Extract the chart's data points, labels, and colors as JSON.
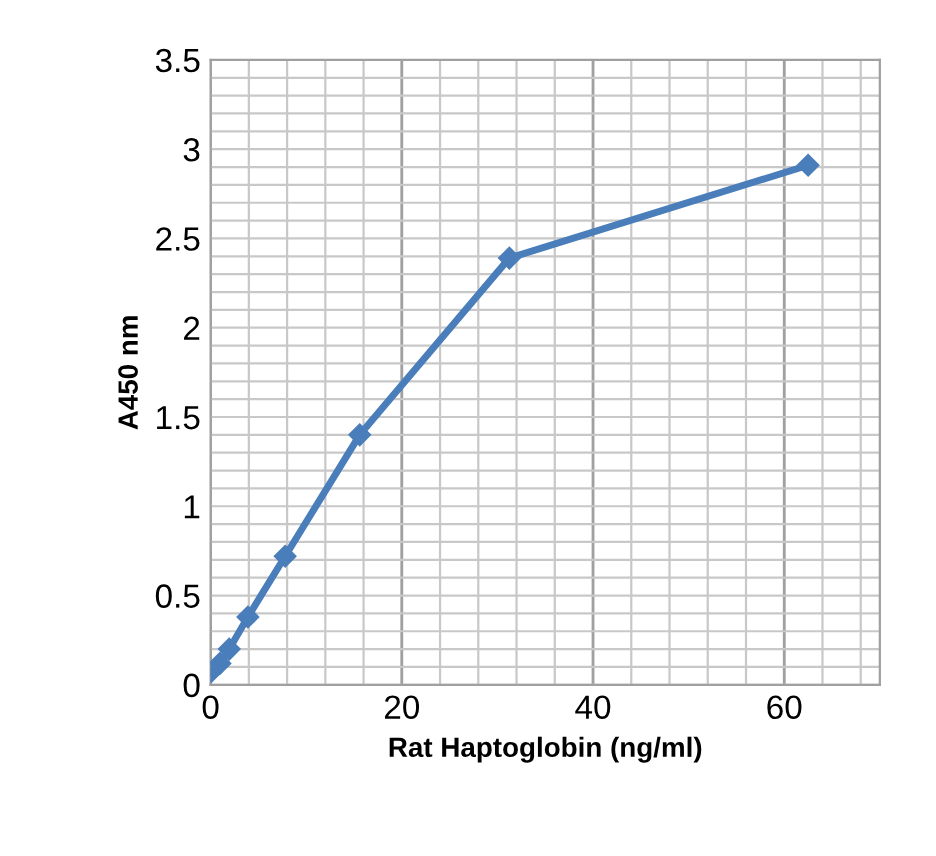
{
  "chart_data": {
    "type": "line",
    "xlabel": "Rat Haptoglobin (ng/ml)",
    "ylabel": "A450 nm",
    "x": [
      0,
      0.98,
      1.95,
      3.9,
      7.8,
      15.6,
      31.25,
      62.5
    ],
    "series": [
      {
        "color": "#4a7ebb",
        "values": [
          0.07,
          0.12,
          0.2,
          0.38,
          0.72,
          1.4,
          2.39,
          2.91
        ]
      }
    ],
    "xlim": [
      0,
      70
    ],
    "xticks": [
      0,
      20,
      40,
      60
    ],
    "ylim": [
      0,
      3.5
    ],
    "yticks": [
      0,
      0.5,
      1,
      1.5,
      2,
      2.5,
      3,
      3.5
    ],
    "grid": true,
    "marker": "diamond",
    "line_style": "solid"
  }
}
